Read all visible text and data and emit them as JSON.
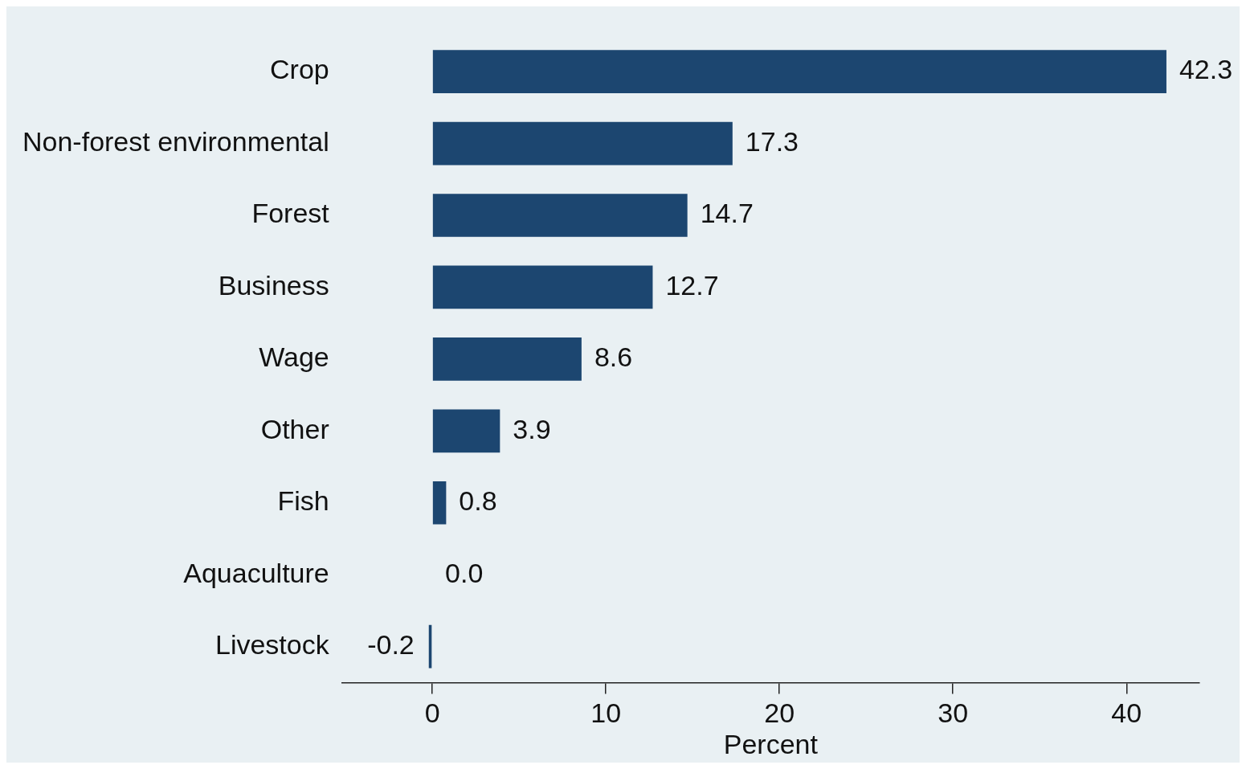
{
  "chart_data": {
    "type": "bar",
    "orientation": "horizontal",
    "xlabel": "Percent",
    "categories": [
      "Crop",
      "Non-forest environmental",
      "Forest",
      "Business",
      "Wage",
      "Other",
      "Fish",
      "Aquaculture",
      "Livestock"
    ],
    "values": [
      42.3,
      17.3,
      14.7,
      12.7,
      8.6,
      3.9,
      0.8,
      0.0,
      -0.2
    ],
    "value_labels": [
      "42.3",
      "17.3",
      "14.7",
      "12.7",
      "8.6",
      "3.9",
      "0.8",
      "0.0",
      "-0.2"
    ],
    "color": "#1c4670",
    "xlim": [
      -5.2,
      44.2
    ],
    "xticks": [
      0,
      10,
      20,
      30,
      40
    ],
    "grid": false,
    "legend": false
  }
}
